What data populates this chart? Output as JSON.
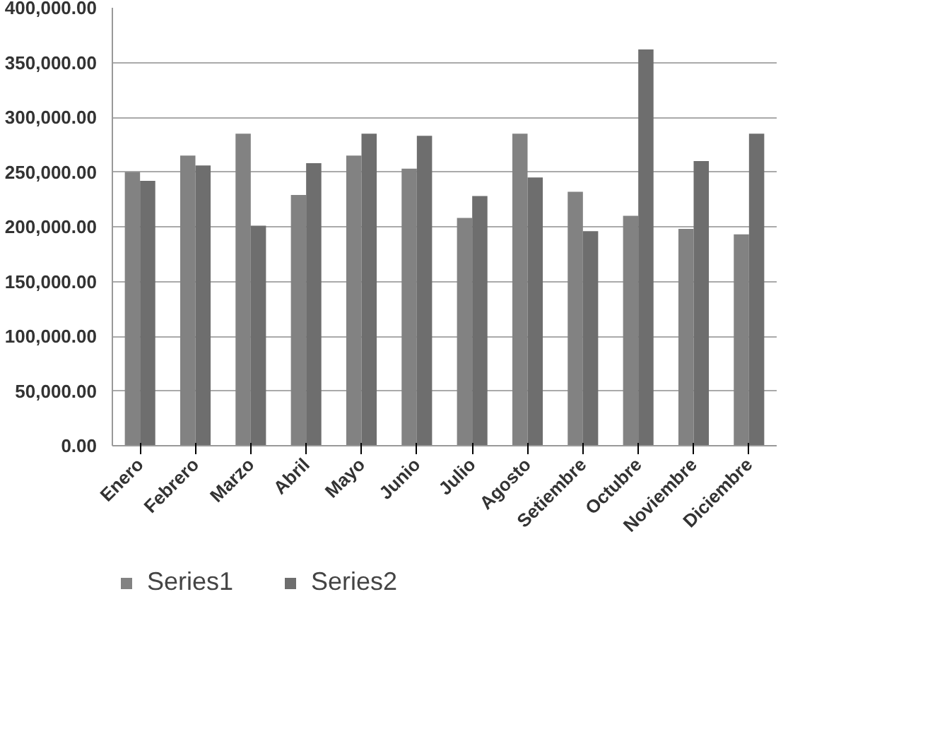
{
  "chart_data": {
    "type": "bar",
    "categories": [
      "Enero",
      "Febrero",
      "Marzo",
      "Abril",
      "Mayo",
      "Junio",
      "Julio",
      "Agosto",
      "Setiembre",
      "Octubre",
      "Noviembre",
      "Diciembre"
    ],
    "series": [
      {
        "name": "Series1",
        "color": "#828282",
        "values": [
          250000,
          265000,
          285000,
          229000,
          265000,
          253000,
          208000,
          285000,
          232000,
          210000,
          198000,
          193000
        ]
      },
      {
        "name": "Series2",
        "color": "#6e6e6e",
        "values": [
          242000,
          256000,
          201000,
          258000,
          285000,
          283000,
          228000,
          245000,
          196000,
          362000,
          260000,
          285000
        ]
      }
    ],
    "ylim": [
      0,
      400000
    ],
    "yticks": [
      {
        "value": 0,
        "label": "0.00"
      },
      {
        "value": 50000,
        "label": "50,000.00"
      },
      {
        "value": 100000,
        "label": "100,000.00"
      },
      {
        "value": 150000,
        "label": "150,000.00"
      },
      {
        "value": 200000,
        "label": "200,000.00"
      },
      {
        "value": 250000,
        "label": "250,000.00"
      },
      {
        "value": 300000,
        "label": "300,000.00"
      },
      {
        "value": 350000,
        "label": "350,000.00"
      },
      {
        "value": 400000,
        "label": "400,000.00"
      }
    ],
    "grid": "y",
    "legend": "bottom"
  }
}
